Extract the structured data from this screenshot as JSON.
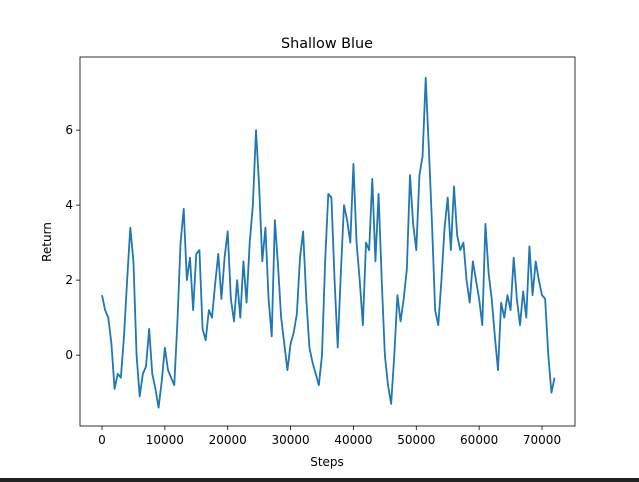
{
  "chart_data": {
    "type": "line",
    "title": "Shallow Blue",
    "x_label": "Steps",
    "y_label": "Return",
    "color": "#1f77b4",
    "x": [
      0,
      500,
      1000,
      1500,
      2000,
      2500,
      3000,
      3500,
      4000,
      4500,
      5000,
      5500,
      6000,
      6500,
      7000,
      7500,
      8000,
      8500,
      9000,
      9500,
      10000,
      10500,
      11000,
      11500,
      12000,
      12500,
      13000,
      13500,
      14000,
      14500,
      15000,
      15500,
      16000,
      16500,
      17000,
      17500,
      18000,
      18500,
      19000,
      19500,
      20000,
      20500,
      21000,
      21500,
      22000,
      22500,
      23000,
      23500,
      24000,
      24500,
      25000,
      25500,
      26000,
      26500,
      27000,
      27500,
      28000,
      28500,
      29000,
      29500,
      30000,
      30500,
      31000,
      31500,
      32000,
      32500,
      33000,
      33500,
      34000,
      34500,
      35000,
      35500,
      36000,
      36500,
      37000,
      37500,
      38000,
      38500,
      39000,
      39500,
      40000,
      40500,
      41000,
      41500,
      42000,
      42500,
      43000,
      43500,
      44000,
      44500,
      45000,
      45500,
      46000,
      46500,
      47000,
      47500,
      48000,
      48500,
      49000,
      49500,
      50000,
      50500,
      51000,
      51500,
      52000,
      52500,
      53000,
      53500,
      54000,
      54500,
      55000,
      55500,
      56000,
      56500,
      57000,
      57500,
      58000,
      58500,
      59000,
      59500,
      60000,
      60500,
      61000,
      61500,
      62000,
      62500,
      63000,
      63500,
      64000,
      64500,
      65000,
      65500,
      66000,
      66500,
      67000,
      67500,
      68000,
      68500,
      69000,
      69500,
      70000,
      70500,
      71000,
      71500,
      72000
    ],
    "values": [
      1.6,
      1.2,
      1.0,
      0.3,
      -0.9,
      -0.5,
      -0.6,
      0.5,
      2.0,
      3.4,
      2.5,
      0.0,
      -1.1,
      -0.5,
      -0.3,
      0.7,
      -0.5,
      -0.9,
      -1.4,
      -0.7,
      0.2,
      -0.4,
      -0.6,
      -0.8,
      0.9,
      3.0,
      3.9,
      2.0,
      2.6,
      1.2,
      2.7,
      2.8,
      0.7,
      0.4,
      1.2,
      1.0,
      1.9,
      2.7,
      1.5,
      2.6,
      3.3,
      1.5,
      0.9,
      2.0,
      1.0,
      2.5,
      1.4,
      3.0,
      4.0,
      6.0,
      4.5,
      2.5,
      3.4,
      1.5,
      0.5,
      3.6,
      2.4,
      1.0,
      0.3,
      -0.4,
      0.3,
      0.6,
      1.1,
      2.6,
      3.3,
      1.5,
      0.2,
      -0.2,
      -0.5,
      -0.8,
      0.0,
      2.5,
      4.3,
      4.2,
      2.0,
      0.2,
      2.2,
      4.0,
      3.6,
      3.0,
      5.1,
      3.0,
      2.0,
      0.8,
      3.0,
      2.8,
      4.7,
      2.5,
      4.3,
      2.0,
      0.0,
      -0.8,
      -1.3,
      0.0,
      1.6,
      0.9,
      1.5,
      2.3,
      4.8,
      3.5,
      2.8,
      4.8,
      5.3,
      7.4,
      5.5,
      3.5,
      1.2,
      0.8,
      2.0,
      3.4,
      4.2,
      2.8,
      4.5,
      3.2,
      2.8,
      3.0,
      2.0,
      1.4,
      2.5,
      2.0,
      1.5,
      0.8,
      3.5,
      2.2,
      1.5,
      0.5,
      -0.4,
      1.4,
      1.0,
      1.6,
      1.2,
      2.6,
      1.5,
      0.8,
      1.7,
      1.0,
      2.9,
      1.6,
      2.5,
      2.0,
      1.6,
      1.5,
      0.0,
      -1.0,
      -0.6
    ],
    "xlim": [
      -3500,
      75250
    ],
    "ylim": [
      -1.89,
      7.95
    ],
    "xticks": [
      0,
      10000,
      20000,
      30000,
      40000,
      50000,
      60000,
      70000
    ],
    "yticks": [
      0,
      2,
      4,
      6
    ]
  }
}
